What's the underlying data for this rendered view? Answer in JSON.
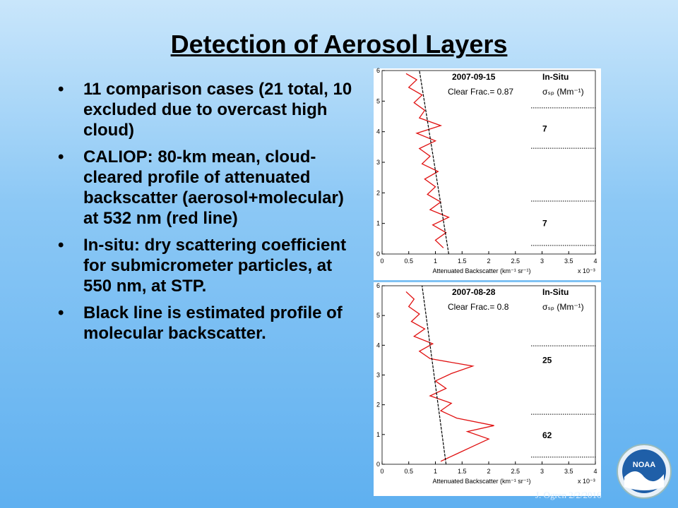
{
  "slide": {
    "title": "Detection of Aerosol Layers",
    "bullets": [
      "11 comparison cases (21 total, 10 excluded due to overcast high cloud)",
      "CALIOP: 80-km mean, cloud-cleared profile of attenuated backscatter (aerosol+molecular) at 532 nm (red line)",
      "In-situ: dry scattering coefficient for submicrometer particles, at 550 nm, at STP.",
      "Black line is estimated profile of molecular backscatter."
    ],
    "footer": "J. Ogren  2/2/2016",
    "logo": "NOAA"
  },
  "plots": [
    {
      "date": "2007-09-15",
      "clear_frac": "Clear Frac.= 0.87",
      "in_situ": "In-Situ",
      "sigma": "σₛₚ (Mm⁻¹)",
      "xlabel": "Attenuated Backscatter (km⁻¹ sr⁻¹)",
      "xscale": "x 10⁻³",
      "xlim": [
        0,
        4
      ],
      "ylim": [
        0,
        6
      ],
      "xticks": [
        0,
        0.5,
        1,
        1.5,
        2,
        2.5,
        3,
        3.5,
        4
      ],
      "yticks": [
        0,
        1,
        2,
        3,
        4,
        5,
        6
      ],
      "layer_bounds": [
        4.78,
        3.46,
        1.73,
        0.28
      ],
      "layers": [
        {
          "label": "7",
          "altitude": 4.1
        },
        {
          "label": "7",
          "altitude": 1.0
        }
      ],
      "altitude": [
        0.2,
        0.45,
        0.7,
        0.95,
        1.2,
        1.45,
        1.7,
        1.95,
        2.2,
        2.45,
        2.7,
        2.95,
        3.2,
        3.45,
        3.7,
        3.95,
        4.2,
        4.45,
        4.7,
        4.95,
        5.2,
        5.45,
        5.7,
        5.9
      ],
      "backscatter": [
        1.15,
        1.0,
        1.2,
        0.95,
        1.25,
        0.9,
        1.1,
        0.85,
        1.0,
        0.8,
        1.05,
        0.75,
        0.9,
        0.7,
        1.0,
        0.65,
        1.1,
        0.7,
        0.8,
        0.6,
        0.75,
        0.5,
        0.65,
        0.45
      ],
      "molecular_altitude": [
        0,
        6
      ],
      "molecular": [
        1.25,
        0.7
      ]
    },
    {
      "date": "2007-08-28",
      "clear_frac": "Clear Frac.= 0.8",
      "in_situ": "In-Situ",
      "sigma": "σₛₚ (Mm⁻¹)",
      "xlabel": "Attenuated Backscatter (km⁻¹ sr⁻¹)",
      "xscale": "x 10⁻³",
      "xlim": [
        0,
        4
      ],
      "ylim": [
        0,
        6
      ],
      "xticks": [
        0,
        0.5,
        1,
        1.5,
        2,
        2.5,
        3,
        3.5,
        4
      ],
      "yticks": [
        0,
        1,
        2,
        3,
        4,
        5,
        6
      ],
      "layer_bounds": [
        3.98,
        1.68,
        0.24
      ],
      "layers": [
        {
          "label": "25",
          "altitude": 3.5
        },
        {
          "label": "62",
          "altitude": 0.97
        }
      ],
      "altitude": [
        0.1,
        0.35,
        0.6,
        0.85,
        1.1,
        1.3,
        1.55,
        1.8,
        2.05,
        2.3,
        2.55,
        2.8,
        3.05,
        3.3,
        3.55,
        3.8,
        4.05,
        4.3,
        4.55,
        4.8,
        5.05,
        5.3,
        5.55,
        5.8
      ],
      "backscatter": [
        1.1,
        1.4,
        1.7,
        2.0,
        1.6,
        2.1,
        1.4,
        1.1,
        1.3,
        0.9,
        1.2,
        1.0,
        1.3,
        1.7,
        0.9,
        0.7,
        0.95,
        0.6,
        0.8,
        0.55,
        0.7,
        0.5,
        0.6,
        0.45
      ],
      "molecular_altitude": [
        0,
        6
      ],
      "molecular": [
        1.2,
        0.75
      ]
    }
  ]
}
